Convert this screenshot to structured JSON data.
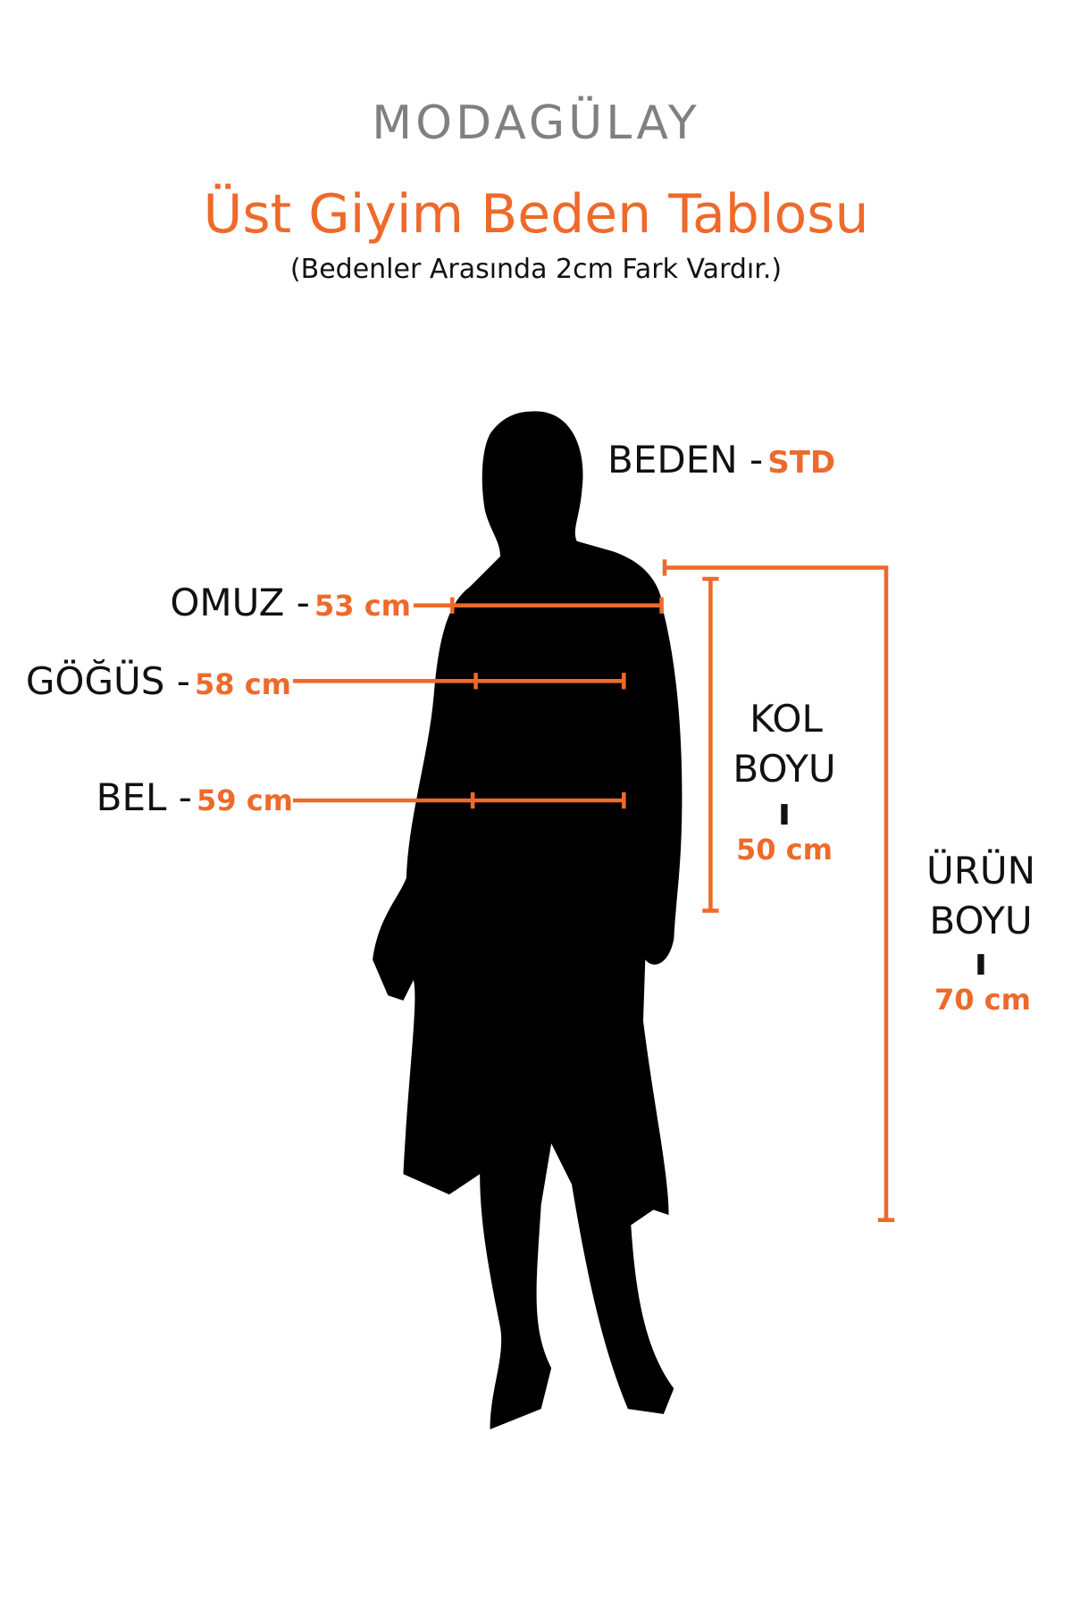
{
  "brand": "MODAGÜLAY",
  "title": "Üst Giyim Beden Tablosu",
  "subtitle": "(Bedenler Arasında 2cm Fark Vardır.)",
  "accent_color": "#ee6a2b",
  "size": {
    "label": "BEDEN -",
    "value": "STD"
  },
  "measurements": {
    "omuz": {
      "label": "OMUZ -",
      "value": "53 cm"
    },
    "gogus": {
      "label": "GÖĞÜS -",
      "value": "58 cm"
    },
    "bel": {
      "label": "BEL -",
      "value": "59 cm"
    },
    "kol_boyu": {
      "label_line1": "KOL",
      "label_line2": "BOYU",
      "separator": "ı",
      "value": "50 cm"
    },
    "urun_boyu": {
      "label_line1": "ÜRÜN",
      "label_line2": "BOYU",
      "separator": "ı",
      "value": "70 cm"
    }
  }
}
